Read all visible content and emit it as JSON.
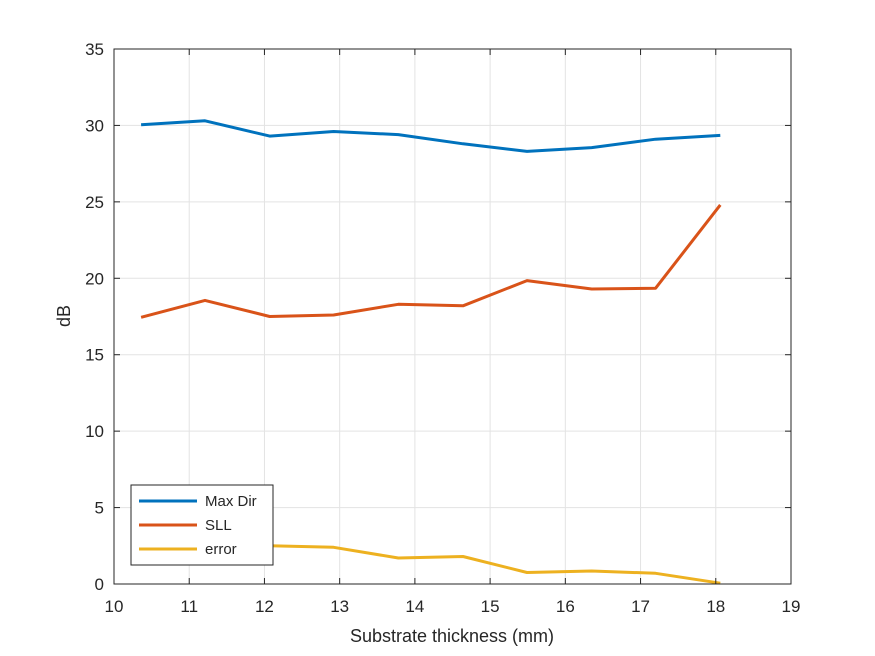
{
  "chart_data": {
    "type": "line",
    "title": "",
    "xlabel": "Substrate thickness (mm)",
    "ylabel": "dB",
    "xlim": [
      10,
      19
    ],
    "ylim": [
      0,
      35
    ],
    "xticks": [
      10,
      11,
      12,
      13,
      14,
      15,
      16,
      17,
      18,
      19
    ],
    "yticks": [
      0,
      5,
      10,
      15,
      20,
      25,
      30,
      35
    ],
    "grid": true,
    "legend_position": "bottom-left",
    "x": [
      10.36,
      11.21,
      12.07,
      12.92,
      13.78,
      14.64,
      15.49,
      16.35,
      17.2,
      18.06
    ],
    "series": [
      {
        "name": "Max Dir",
        "color": "#0072BD",
        "values": [
          30.05,
          30.3,
          29.3,
          29.6,
          29.4,
          28.8,
          28.3,
          28.55,
          29.1,
          29.35
        ]
      },
      {
        "name": "SLL",
        "color": "#D95319",
        "values": [
          17.45,
          18.55,
          17.5,
          17.6,
          18.3,
          18.2,
          19.85,
          19.3,
          19.35,
          24.8
        ]
      },
      {
        "name": "error",
        "color": "#EDB120",
        "values": [
          3.3,
          2.9,
          2.5,
          2.4,
          1.7,
          1.8,
          0.75,
          0.85,
          0.7,
          0.05
        ]
      }
    ]
  }
}
